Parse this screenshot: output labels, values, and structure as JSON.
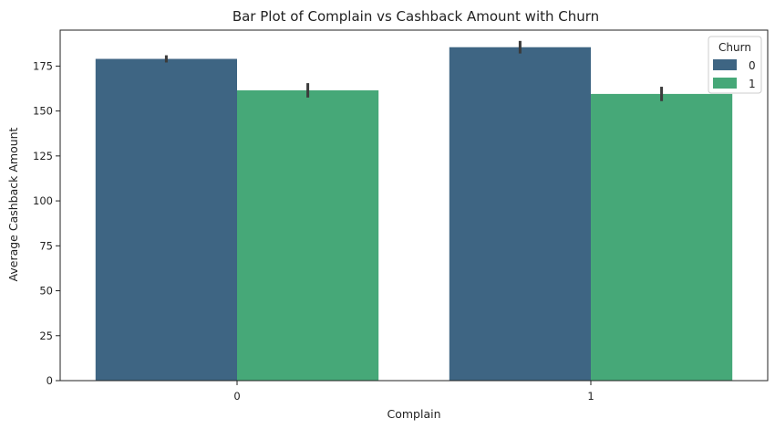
{
  "chart_data": {
    "type": "bar",
    "title": "Bar Plot of Complain vs Cashback Amount with Churn",
    "xlabel": "Complain",
    "ylabel": "Average Cashback Amount",
    "categories": [
      "0",
      "1"
    ],
    "ylim": [
      0,
      195
    ],
    "yticks": [
      0,
      25,
      50,
      75,
      100,
      125,
      150,
      175
    ],
    "grid": false,
    "legend": {
      "title": "Churn",
      "placement": "top-right"
    },
    "series": [
      {
        "name": "0",
        "color": "#3e6583",
        "values": [
          179.0,
          185.5
        ],
        "error_low": [
          177.0,
          182.0
        ],
        "error_high": [
          181.0,
          189.0
        ]
      },
      {
        "name": "1",
        "color": "#46a878",
        "values": [
          161.5,
          159.5
        ],
        "error_low": [
          157.5,
          155.5
        ],
        "error_high": [
          165.5,
          163.5
        ]
      }
    ]
  }
}
